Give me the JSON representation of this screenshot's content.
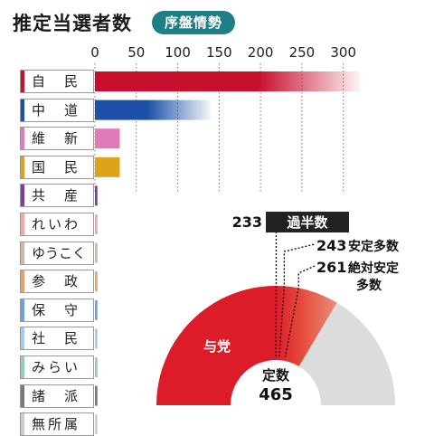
{
  "header": {
    "title": "推定当選者数",
    "badge": "序盤情勢"
  },
  "chart_data": [
    {
      "type": "bar",
      "orientation": "horizontal",
      "xlim": [
        0,
        320
      ],
      "xticks": [
        "0",
        "50",
        "100",
        "150",
        "200",
        "250",
        "300"
      ],
      "grid": true,
      "categories": [
        "自　民",
        "中　道",
        "維　新",
        "国　民",
        "共　産",
        "れいわ",
        "ゆうこく",
        "参　政",
        "保　守",
        "社　民",
        "みらい",
        "諸　派",
        "無所属"
      ],
      "values": [
        320,
        140,
        30,
        30,
        3,
        3,
        3,
        3,
        3,
        3,
        3,
        3,
        3
      ],
      "colors": [
        "#c8102e",
        "#1d50a8",
        "#e07ab8",
        "#dba21a",
        "#7b3fa0",
        "#f2a6a6",
        "#c9b9a8",
        "#e8a06c",
        "#6fa2d8",
        "#a8c8ec",
        "#8ed1b3",
        "#7a7a7a",
        "#cccccc"
      ]
    },
    {
      "type": "pie",
      "style": "semicircle",
      "total": 465,
      "total_label": "定数",
      "total_value": "465",
      "slices": [
        {
          "name": "与党",
          "value": 232,
          "color": "#dd1c2a"
        },
        {
          "name": "",
          "value": 80,
          "color": "#e8705e"
        },
        {
          "name": "",
          "value": 153,
          "color": "#dcdcdc"
        }
      ],
      "markers": [
        {
          "value": 233,
          "label": "233",
          "text": "過半数"
        },
        {
          "value": 243,
          "label": "243",
          "text": "安定多数"
        },
        {
          "value": 261,
          "label": "261",
          "text": "絶対安定",
          "text2": "多数"
        }
      ]
    }
  ]
}
